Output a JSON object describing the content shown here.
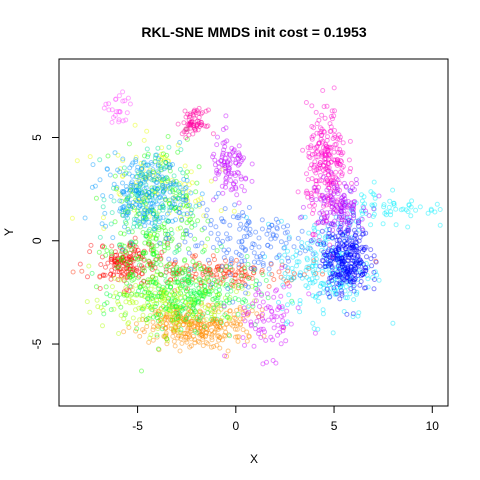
{
  "chart_data": {
    "type": "scatter",
    "title": "RKL-SNE MMDS init cost = 0.1953",
    "xlabel": "X",
    "ylabel": "Y",
    "xlim": [
      -9.0,
      10.8
    ],
    "ylim": [
      -8.0,
      8.8
    ],
    "xticks": [
      -5,
      0,
      5,
      10
    ],
    "yticks": [
      -5,
      0,
      5
    ],
    "marker": "open-circle",
    "clusters": [
      {
        "name": "red",
        "color": "#ff0000",
        "cx": -5.6,
        "cy": -1.1,
        "sx": 0.8,
        "sy": 0.5,
        "n": 150
      },
      {
        "name": "red-band",
        "color": "#ff2a00",
        "cx": -1.0,
        "cy": -1.6,
        "sx": 2.3,
        "sy": 0.35,
        "n": 160
      },
      {
        "name": "orange",
        "color": "#ff8c00",
        "cx": -2.0,
        "cy": -4.1,
        "sx": 1.4,
        "sy": 0.5,
        "n": 300
      },
      {
        "name": "yellow",
        "color": "#e6ff00",
        "cx": -4.0,
        "cy": 2.6,
        "sx": 1.6,
        "sy": 1.2,
        "n": 110
      },
      {
        "name": "yellow-green",
        "color": "#b0ff00",
        "cx": -3.4,
        "cy": -3.0,
        "sx": 1.6,
        "sy": 0.7,
        "n": 220
      },
      {
        "name": "green",
        "color": "#22ff00",
        "cx": -4.0,
        "cy": 0.2,
        "sx": 1.3,
        "sy": 2.0,
        "n": 300
      },
      {
        "name": "green-2",
        "color": "#00ff40",
        "cx": -2.2,
        "cy": -2.6,
        "sx": 1.7,
        "sy": 0.8,
        "n": 220
      },
      {
        "name": "teal",
        "color": "#00e0a0",
        "cx": -4.6,
        "cy": 2.0,
        "sx": 0.9,
        "sy": 1.2,
        "n": 110
      },
      {
        "name": "cyan",
        "color": "#00e5ff",
        "cx": 4.6,
        "cy": -1.4,
        "sx": 1.2,
        "sy": 1.2,
        "n": 220
      },
      {
        "name": "cyan-arm",
        "color": "#00f0ff",
        "cx": 7.8,
        "cy": 1.6,
        "sx": 1.5,
        "sy": 0.5,
        "n": 70
      },
      {
        "name": "sky",
        "color": "#0099ff",
        "cx": -4.6,
        "cy": 2.3,
        "sx": 1.1,
        "sy": 0.9,
        "n": 220
      },
      {
        "name": "blue",
        "color": "#1e64ff",
        "cx": 0.2,
        "cy": 0.0,
        "sx": 1.8,
        "sy": 1.0,
        "n": 160
      },
      {
        "name": "deep-blue",
        "color": "#0000ff",
        "cx": 5.6,
        "cy": -0.8,
        "sx": 0.6,
        "sy": 0.9,
        "n": 320
      },
      {
        "name": "magenta",
        "color": "#ff00cc",
        "cx": 4.6,
        "cy": 3.6,
        "sx": 0.5,
        "sy": 1.4,
        "n": 250
      },
      {
        "name": "violet",
        "color": "#c000ff",
        "cx": -0.3,
        "cy": 3.4,
        "sx": 0.5,
        "sy": 0.8,
        "n": 100
      },
      {
        "name": "violet-2",
        "color": "#b000ff",
        "cx": 5.2,
        "cy": 1.8,
        "sx": 0.7,
        "sy": 0.6,
        "n": 120
      },
      {
        "name": "pink",
        "color": "#ff00a0",
        "cx": -2.1,
        "cy": 5.7,
        "sx": 0.3,
        "sy": 0.3,
        "n": 70
      },
      {
        "name": "purple-arc",
        "color": "#d000ff",
        "cx": 1.6,
        "cy": -3.8,
        "sx": 0.9,
        "sy": 0.9,
        "n": 80
      },
      {
        "name": "rose",
        "color": "#ff40ff",
        "cx": -6.0,
        "cy": 6.2,
        "sx": 0.3,
        "sy": 0.5,
        "n": 25
      }
    ]
  }
}
